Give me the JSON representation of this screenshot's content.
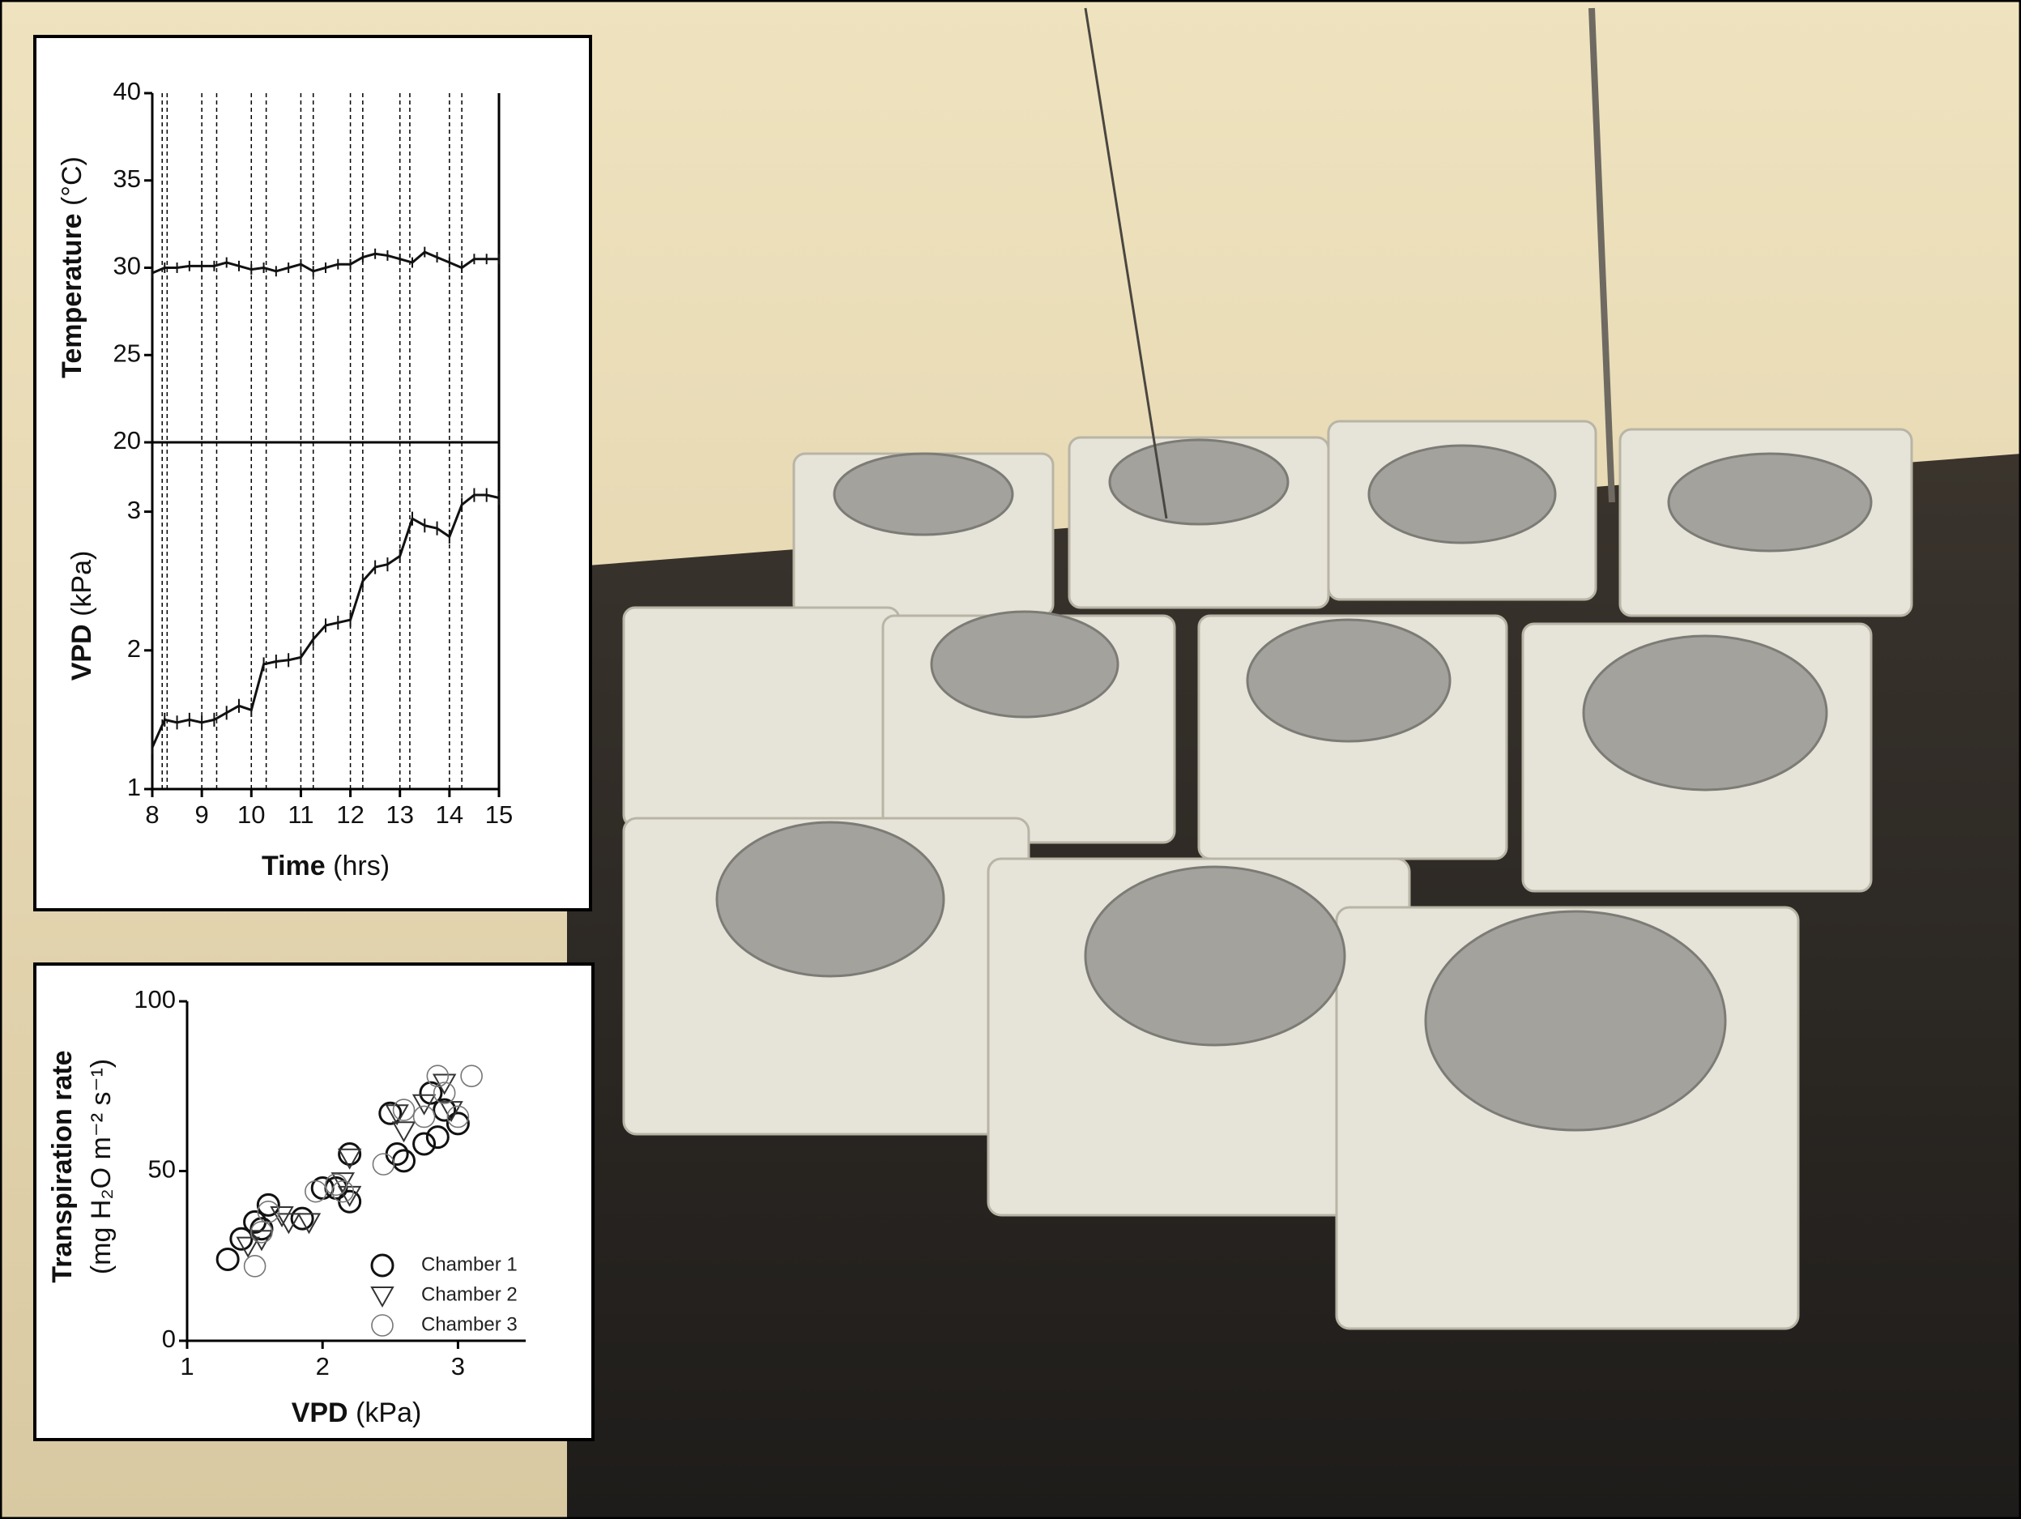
{
  "chart_data": [
    {
      "type": "line",
      "ylabel": "Temperature",
      "yunit": "(°C)",
      "color": "#111111",
      "x": [
        8,
        8.25,
        8.5,
        8.75,
        9,
        9.25,
        9.5,
        9.75,
        10,
        10.25,
        10.5,
        10.75,
        11,
        11.25,
        11.5,
        11.75,
        12,
        12.25,
        12.5,
        12.75,
        13,
        13.25,
        13.5,
        13.75,
        14,
        14.25,
        14.5,
        14.75,
        15
      ],
      "values": [
        29.7,
        30.0,
        30.0,
        30.1,
        30.1,
        30.1,
        30.3,
        30.1,
        29.9,
        30.0,
        29.8,
        30.0,
        30.2,
        29.8,
        30.0,
        30.2,
        30.2,
        30.6,
        30.8,
        30.7,
        30.5,
        30.3,
        30.9,
        30.6,
        30.3,
        30.0,
        30.5,
        30.5,
        30.5
      ],
      "errors": [
        0.3,
        0.3,
        0.3,
        0.3,
        0.3,
        0.3,
        0.3,
        0.3,
        0.3,
        0.3,
        0.3,
        0.3,
        0.3,
        0.3,
        0.3,
        0.3,
        0.3,
        0.3,
        0.3,
        0.3,
        0.3,
        0.3,
        0.3,
        0.3,
        0.3,
        0.3,
        0.3,
        0.3,
        0.3
      ],
      "xlim": [
        8,
        15
      ],
      "ylim": [
        20,
        40
      ],
      "yticks": [
        20,
        25,
        30,
        35,
        40
      ],
      "vlines": [
        8.2,
        8.3,
        9.0,
        9.3,
        10.0,
        10.3,
        11.0,
        11.25,
        12.0,
        12.25,
        13.0,
        13.2,
        14.0,
        14.25
      ]
    },
    {
      "type": "line",
      "ylabel": "VPD",
      "yunit": "(kPa)",
      "xlabel": "Time",
      "xunit": "(hrs)",
      "color": "#111111",
      "x": [
        8,
        8.25,
        8.5,
        8.75,
        9,
        9.25,
        9.5,
        9.75,
        10,
        10.25,
        10.5,
        10.75,
        11,
        11.25,
        11.5,
        11.75,
        12,
        12.25,
        12.5,
        12.75,
        13,
        13.25,
        13.5,
        13.75,
        14,
        14.25,
        14.5,
        14.75,
        15
      ],
      "values": [
        1.3,
        1.5,
        1.48,
        1.5,
        1.48,
        1.5,
        1.55,
        1.6,
        1.57,
        1.9,
        1.92,
        1.93,
        1.95,
        2.08,
        2.18,
        2.2,
        2.22,
        2.5,
        2.6,
        2.62,
        2.68,
        2.95,
        2.9,
        2.88,
        2.82,
        3.05,
        3.12,
        3.12,
        3.1
      ],
      "errors": [
        0.05,
        0.05,
        0.05,
        0.05,
        0.05,
        0.05,
        0.05,
        0.05,
        0.05,
        0.05,
        0.05,
        0.05,
        0.05,
        0.05,
        0.05,
        0.05,
        0.05,
        0.05,
        0.05,
        0.05,
        0.05,
        0.05,
        0.05,
        0.05,
        0.05,
        0.05,
        0.05,
        0.05,
        0.05
      ],
      "xlim": [
        8,
        15
      ],
      "xticks": [
        8,
        9,
        10,
        11,
        12,
        13,
        14,
        15
      ],
      "ylim": [
        1,
        3.5
      ],
      "yticks": [
        1,
        2,
        3
      ],
      "vlines": [
        8.2,
        8.3,
        9.0,
        9.3,
        10.0,
        10.3,
        11.0,
        11.25,
        12.0,
        12.25,
        13.0,
        13.2,
        14.0,
        14.25
      ]
    },
    {
      "type": "scatter",
      "xlabel": "VPD",
      "xunit": "(kPa)",
      "ylabel": "Transpiration rate",
      "yunit": "(mg H₂O m⁻² s⁻¹)",
      "xlim": [
        1,
        3.5
      ],
      "xticks": [
        1,
        2,
        3
      ],
      "ylim": [
        0,
        100
      ],
      "yticks": [
        0,
        50,
        100
      ],
      "series": [
        {
          "name": "Chamber 1",
          "marker": "circle",
          "color": "#111111",
          "x": [
            1.3,
            1.4,
            1.5,
            1.55,
            1.6,
            1.85,
            2.0,
            2.1,
            2.2,
            2.2,
            2.5,
            2.55,
            2.6,
            2.8,
            2.85,
            2.9,
            3.0,
            2.75
          ],
          "values": [
            24,
            30,
            35,
            33,
            40,
            36,
            45,
            45,
            41,
            55,
            67,
            55,
            53,
            73,
            60,
            68,
            64,
            58
          ]
        },
        {
          "name": "Chamber 2",
          "marker": "triangle",
          "color": "#333333",
          "x": [
            1.45,
            1.55,
            1.7,
            1.75,
            1.9,
            2.15,
            2.2,
            2.2,
            2.55,
            2.6,
            2.75,
            2.9,
            2.95
          ],
          "values": [
            28,
            30,
            37,
            35,
            35,
            47,
            54,
            43,
            67,
            62,
            70,
            76,
            68
          ]
        },
        {
          "name": "Chamber 3",
          "marker": "circle-thin",
          "color": "#777777",
          "x": [
            1.5,
            1.55,
            1.6,
            1.95,
            2.1,
            2.15,
            2.45,
            2.6,
            2.75,
            2.85,
            3.0,
            3.1,
            2.9
          ],
          "values": [
            22,
            32,
            38,
            44,
            46,
            44,
            52,
            68,
            66,
            78,
            66,
            78,
            73
          ]
        }
      ]
    }
  ]
}
